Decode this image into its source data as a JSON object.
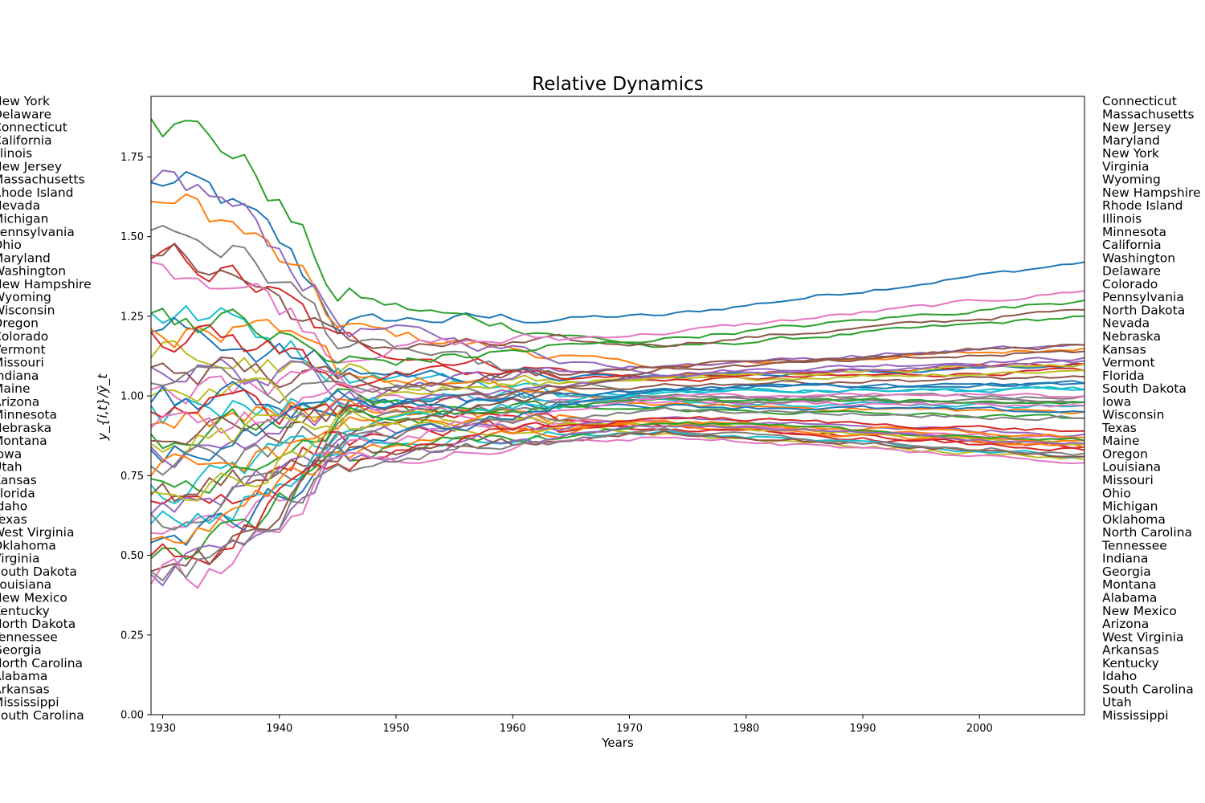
{
  "chart_data": {
    "type": "line",
    "title": "Relative Dynamics",
    "xlabel": "Years",
    "ylabel": "y_{i,t}/ȳ_t",
    "xlim": [
      1929,
      2009
    ],
    "ylim": [
      0.0,
      1.94
    ],
    "x_ticks": [
      "1930",
      "1940",
      "1950",
      "1960",
      "1970",
      "1980",
      "1990",
      "2000"
    ],
    "y_ticks": [
      "0.00",
      "0.25",
      "0.50",
      "0.75",
      "1.00",
      "1.25",
      "1.50",
      "1.75"
    ],
    "grid": false,
    "x_years": [
      1929,
      2009
    ],
    "palette": [
      "#1f77b4",
      "#ff7f0e",
      "#2ca02c",
      "#d62728",
      "#9467bd",
      "#8c564b",
      "#e377c2",
      "#7f7f7f",
      "#bcbd22",
      "#17becf"
    ],
    "left_labels_1929_rank": [
      "New York",
      "Delaware",
      "Connecticut",
      "California",
      "Illinois",
      "New Jersey",
      "Massachusetts",
      "Rhode Island",
      "Nevada",
      "Michigan",
      "Pennsylvania",
      "Ohio",
      "Maryland",
      "Washington",
      "New Hampshire",
      "Wyoming",
      "Wisconsin",
      "Oregon",
      "Colorado",
      "Vermont",
      "Missouri",
      "Indiana",
      "Maine",
      "Arizona",
      "Minnesota",
      "Nebraska",
      "Montana",
      "Iowa",
      "Utah",
      "Kansas",
      "Florida",
      "Idaho",
      "Texas",
      "West Virginia",
      "Oklahoma",
      "Virginia",
      "South Dakota",
      "Louisiana",
      "New Mexico",
      "Kentucky",
      "North Dakota",
      "Tennessee",
      "Georgia",
      "North Carolina",
      "Alabama",
      "Arkansas",
      "Mississippi",
      "South Carolina"
    ],
    "right_labels_2009_rank": [
      "Connecticut",
      "Massachusetts",
      "New Jersey",
      "Maryland",
      "New York",
      "Virginia",
      "Wyoming",
      "New Hampshire",
      "Rhode Island",
      "Illinois",
      "Minnesota",
      "California",
      "Washington",
      "Delaware",
      "Colorado",
      "Pennsylvania",
      "North Dakota",
      "Nevada",
      "Nebraska",
      "Kansas",
      "Vermont",
      "Florida",
      "South Dakota",
      "Iowa",
      "Wisconsin",
      "Texas",
      "Maine",
      "Oregon",
      "Louisiana",
      "Missouri",
      "Ohio",
      "Michigan",
      "Oklahoma",
      "North Carolina",
      "Tennessee",
      "Indiana",
      "Georgia",
      "Montana",
      "Alabama",
      "New Mexico",
      "Arizona",
      "West Virginia",
      "Arkansas",
      "Kentucky",
      "Idaho",
      "South Carolina",
      "Utah",
      "Mississippi"
    ],
    "series": [
      {
        "values_1929": 1.67,
        "values_2009": 1.42
      },
      {
        "values_1929": 1.61,
        "values_2009": 1.15
      },
      {
        "values_1929": 1.87,
        "values_2009": 1.25
      },
      {
        "values_1929": 1.43,
        "values_2009": 1.08
      },
      {
        "values_1929": 1.67,
        "values_2009": 1.12
      },
      {
        "values_1929": 1.44,
        "values_2009": 1.27
      },
      {
        "values_1929": 1.42,
        "values_2009": 1.33
      },
      {
        "values_1929": 1.52,
        "values_2009": 0.98
      },
      {
        "values_1929": 1.12,
        "values_2009": 1.08
      },
      {
        "values_1929": 1.26,
        "values_2009": 0.97
      },
      {
        "values_1929": 1.2,
        "values_2009": 1.1
      },
      {
        "values_1929": 1.21,
        "values_2009": 0.95
      },
      {
        "values_1929": 1.26,
        "values_2009": 1.3
      },
      {
        "values_1929": 1.2,
        "values_2009": 1.1
      },
      {
        "values_1929": 1.09,
        "values_2009": 1.16
      },
      {
        "values_1929": 1.09,
        "values_2009": 1.16
      },
      {
        "values_1929": 1.02,
        "values_2009": 0.97
      },
      {
        "values_1929": 1.04,
        "values_2009": 0.98
      },
      {
        "values_1929": 1.0,
        "values_2009": 1.1
      },
      {
        "values_1929": 0.97,
        "values_2009": 1.02
      },
      {
        "values_1929": 0.98,
        "values_2009": 0.95
      },
      {
        "values_1929": 0.91,
        "values_2009": 0.86
      },
      {
        "values_1929": 0.88,
        "values_2009": 0.93
      },
      {
        "values_1929": 0.95,
        "values_2009": 0.84
      },
      {
        "values_1929": 0.84,
        "values_2009": 1.11
      },
      {
        "values_1929": 0.86,
        "values_2009": 1.06
      },
      {
        "values_1929": 0.9,
        "values_2009": 0.86
      },
      {
        "values_1929": 0.78,
        "values_2009": 1.0
      },
      {
        "values_1929": 0.85,
        "values_2009": 0.8
      },
      {
        "values_1929": 0.72,
        "values_2009": 1.02
      },
      {
        "values_1929": 0.83,
        "values_2009": 1.04
      },
      {
        "values_1929": 0.75,
        "values_2009": 0.84
      },
      {
        "values_1929": 0.74,
        "values_2009": 0.98
      },
      {
        "values_1929": 0.67,
        "values_2009": 0.83
      },
      {
        "values_1929": 0.63,
        "values_2009": 0.88
      },
      {
        "values_1929": 0.69,
        "values_2009": 1.14
      },
      {
        "values_1929": 0.57,
        "values_2009": 1.0
      },
      {
        "values_1929": 0.63,
        "values_2009": 0.93
      },
      {
        "values_1929": 0.7,
        "values_2009": 0.85
      },
      {
        "values_1929": 0.6,
        "values_2009": 0.81
      },
      {
        "values_1929": 0.54,
        "values_2009": 1.04
      },
      {
        "values_1929": 0.55,
        "values_2009": 0.87
      },
      {
        "values_1929": 0.49,
        "values_2009": 0.86
      },
      {
        "values_1929": 0.5,
        "values_2009": 0.89
      },
      {
        "values_1929": 0.44,
        "values_2009": 0.85
      },
      {
        "values_1929": 0.45,
        "values_2009": 0.81
      },
      {
        "values_1929": 0.41,
        "values_2009": 0.79
      },
      {
        "values_1929": 0.45,
        "values_2009": 0.82
      }
    ]
  }
}
